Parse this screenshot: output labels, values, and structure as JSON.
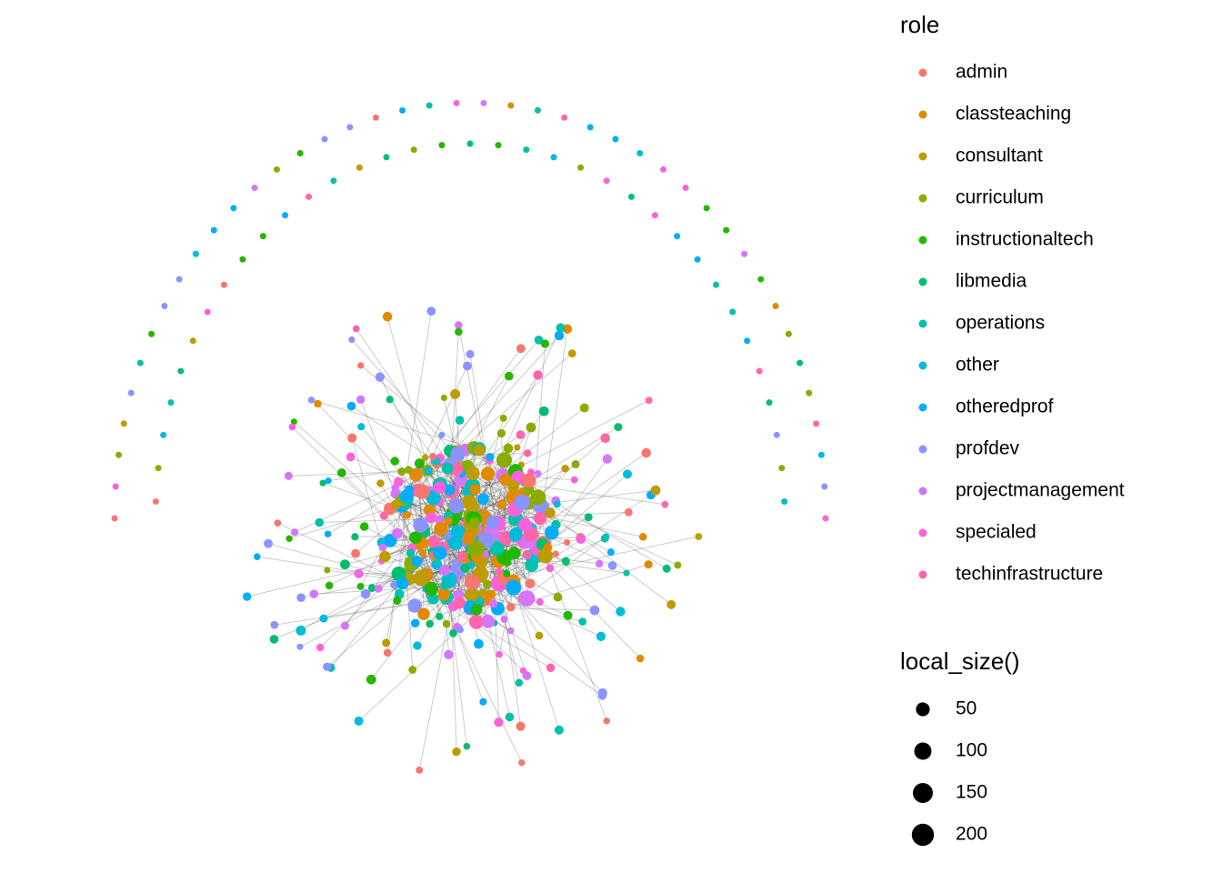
{
  "chart_data": {
    "type": "network",
    "color_legend": {
      "title": "role",
      "items": [
        {
          "name": "admin",
          "color": "#F8766D"
        },
        {
          "name": "classteaching",
          "color": "#E18A00"
        },
        {
          "name": "consultant",
          "color": "#BE9C00"
        },
        {
          "name": "curriculum",
          "color": "#8CAB00"
        },
        {
          "name": "instructionaltech",
          "color": "#24B700"
        },
        {
          "name": "libmedia",
          "color": "#00BE70"
        },
        {
          "name": "operations",
          "color": "#00C1AB"
        },
        {
          "name": "other",
          "color": "#00BBDA"
        },
        {
          "name": "otheredprof",
          "color": "#00ACFC"
        },
        {
          "name": "profdev",
          "color": "#8B93FF"
        },
        {
          "name": "projectmanagement",
          "color": "#D575FE"
        },
        {
          "name": "specialed",
          "color": "#F962DD"
        },
        {
          "name": "techinfrastructure",
          "color": "#FF65AC"
        }
      ]
    },
    "size_legend": {
      "title": "local_size()",
      "values": [
        50,
        100,
        150,
        200
      ]
    }
  }
}
